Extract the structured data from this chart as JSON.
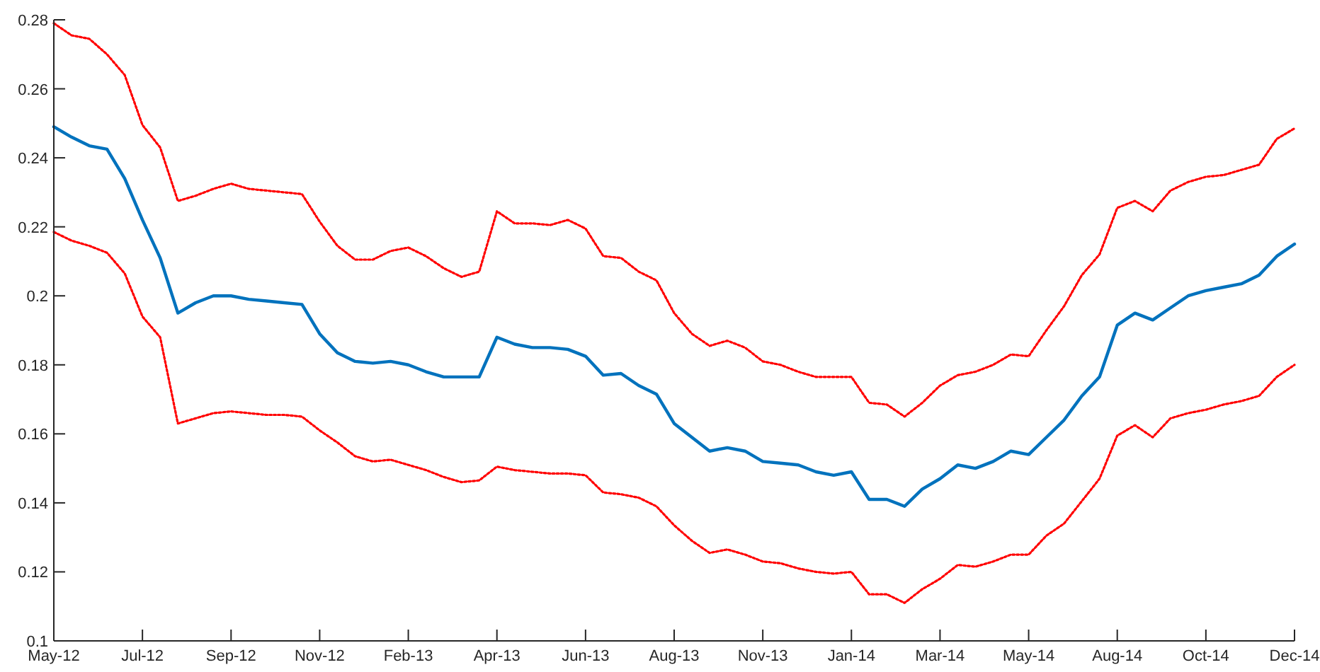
{
  "chart_data": {
    "type": "line",
    "ylim": [
      0.1,
      0.28
    ],
    "categories": [
      "May-12",
      null,
      null,
      null,
      null,
      "Jul-12",
      null,
      null,
      null,
      null,
      "Sep-12",
      null,
      null,
      null,
      null,
      "Nov-12",
      null,
      null,
      null,
      null,
      "Feb-13",
      null,
      null,
      null,
      null,
      "Apr-13",
      null,
      null,
      null,
      null,
      "Jun-13",
      null,
      null,
      null,
      null,
      "Aug-13",
      null,
      null,
      null,
      null,
      "Nov-13",
      null,
      null,
      null,
      null,
      "Jan-14",
      null,
      null,
      null,
      null,
      "Mar-14",
      null,
      null,
      null,
      null,
      "May-14",
      null,
      null,
      null,
      null,
      "Aug-14",
      null,
      null,
      null,
      null,
      "Oct-14",
      null,
      null,
      null,
      null,
      "Dec-14"
    ],
    "yticks": [
      0.1,
      0.12,
      0.14,
      0.16,
      0.18,
      0.2,
      0.22,
      0.24,
      0.26,
      0.28
    ],
    "grid": false,
    "series": [
      {
        "color": "#0072bd",
        "line_style": "solid",
        "values": [
          0.249,
          0.246,
          0.2435,
          0.2425,
          0.234,
          0.222,
          0.211,
          0.195,
          0.198,
          0.2,
          0.2,
          0.199,
          0.1985,
          0.198,
          0.1975,
          0.189,
          0.1835,
          0.181,
          0.1805,
          0.181,
          0.18,
          0.178,
          0.1765,
          0.1765,
          0.1765,
          0.188,
          0.186,
          0.185,
          0.185,
          0.1845,
          0.1825,
          0.177,
          0.1775,
          0.174,
          0.1715,
          0.163,
          0.159,
          0.155,
          0.156,
          0.155,
          0.152,
          0.1515,
          0.151,
          0.149,
          0.148,
          0.149,
          0.141,
          0.141,
          0.139,
          0.144,
          0.147,
          0.151,
          0.15,
          0.152,
          0.155,
          0.154,
          0.159,
          0.164,
          0.171,
          0.1765,
          0.1915,
          0.195,
          0.193,
          0.1965,
          0.2,
          0.2015,
          0.2025,
          0.2035,
          0.206,
          0.2115,
          0.215
        ]
      },
      {
        "color": "#ff0000",
        "line_style": "dotted",
        "values": [
          0.279,
          0.2755,
          0.2745,
          0.27,
          0.264,
          0.2495,
          0.243,
          0.2275,
          0.229,
          0.231,
          0.2325,
          0.231,
          0.2305,
          0.23,
          0.2295,
          0.2215,
          0.2145,
          0.2105,
          0.2105,
          0.213,
          0.214,
          0.2115,
          0.208,
          0.2055,
          0.207,
          0.2245,
          0.221,
          0.221,
          0.2205,
          0.222,
          0.2195,
          0.2115,
          0.211,
          0.207,
          0.2045,
          0.195,
          0.189,
          0.1855,
          0.187,
          0.185,
          0.181,
          0.18,
          0.178,
          0.1765,
          0.1765,
          0.1765,
          0.169,
          0.1685,
          0.165,
          0.169,
          0.174,
          0.177,
          0.178,
          0.18,
          0.183,
          0.1825,
          0.19,
          0.197,
          0.206,
          0.212,
          0.2255,
          0.2275,
          0.2245,
          0.2305,
          0.233,
          0.2345,
          0.235,
          0.2365,
          0.238,
          0.2455,
          0.2485
        ]
      },
      {
        "color": "#ff0000",
        "line_style": "dotted",
        "values": [
          0.2185,
          0.216,
          0.2145,
          0.2125,
          0.2065,
          0.194,
          0.188,
          0.163,
          0.1645,
          0.166,
          0.1665,
          0.166,
          0.1655,
          0.1655,
          0.165,
          0.161,
          0.1575,
          0.1535,
          0.152,
          0.1525,
          0.151,
          0.1495,
          0.1475,
          0.146,
          0.1465,
          0.1505,
          0.1495,
          0.149,
          0.1485,
          0.1485,
          0.148,
          0.143,
          0.1425,
          0.1415,
          0.139,
          0.1335,
          0.129,
          0.1255,
          0.1265,
          0.125,
          0.123,
          0.1225,
          0.121,
          0.12,
          0.1195,
          0.12,
          0.1135,
          0.1135,
          0.111,
          0.115,
          0.118,
          0.122,
          0.1215,
          0.123,
          0.125,
          0.125,
          0.1305,
          0.134,
          0.1405,
          0.147,
          0.1595,
          0.1625,
          0.159,
          0.1645,
          0.166,
          0.167,
          0.1685,
          0.1695,
          0.171,
          0.1765,
          0.18
        ]
      }
    ]
  }
}
